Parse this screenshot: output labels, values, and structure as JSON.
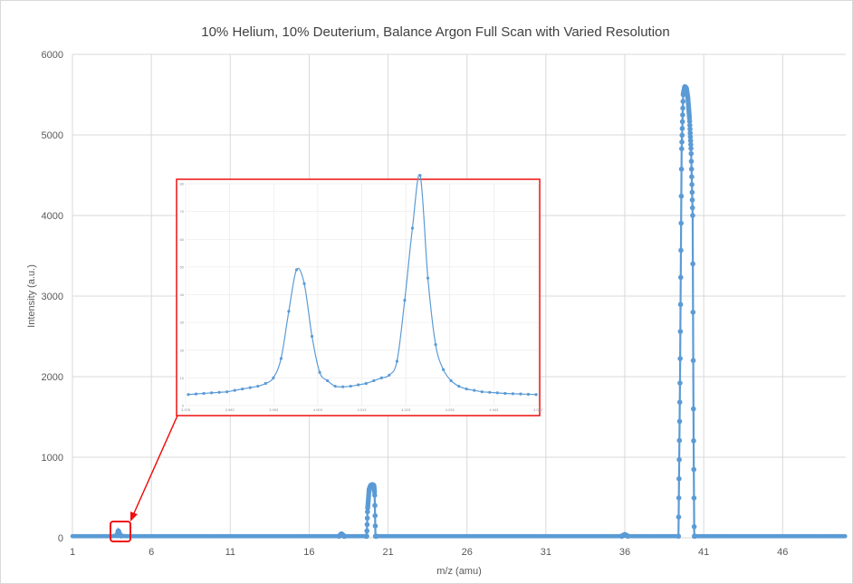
{
  "chart_data": [
    {
      "type": "scatter",
      "title": "10% Helium, 10% Deuterium, Balance Argon Full Scan with Varied Resolution",
      "xlabel": "m/z (amu)",
      "ylabel": "Intensity (a.u.)",
      "xlim": [
        1,
        50
      ],
      "ylim": [
        0,
        6000
      ],
      "x_ticks": [
        "1",
        "6",
        "11",
        "16",
        "21",
        "26",
        "31",
        "36",
        "41",
        "46"
      ],
      "y_ticks": [
        "0",
        "1000",
        "2000",
        "3000",
        "4000",
        "5000",
        "6000"
      ],
      "grid": true,
      "color": "#5b9bd5",
      "series": [
        {
          "x": [
            1,
            3.5,
            3.85,
            3.9,
            4.0,
            4.05,
            4.4,
            17.9,
            18.05,
            18.2,
            19.65,
            19.7,
            19.8,
            19.9,
            20.0,
            20.1,
            20.15,
            20.2,
            20.5,
            35.8,
            36.0,
            36.2,
            39.4,
            39.5,
            39.6,
            39.7,
            39.8,
            39.9,
            40.0,
            40.1,
            40.2,
            40.3,
            40.35,
            40.4,
            40.6,
            50
          ],
          "y": [
            20,
            20,
            30,
            90,
            40,
            25,
            20,
            20,
            50,
            20,
            20,
            350,
            600,
            650,
            660,
            650,
            550,
            20,
            20,
            20,
            40,
            20,
            20,
            2000,
            4800,
            5500,
            5600,
            5580,
            5450,
            5200,
            4800,
            4000,
            1500,
            20,
            20,
            20
          ]
        }
      ]
    },
    {
      "type": "line",
      "title": "",
      "inset_of": "peak near m/z 4",
      "x_ticks": [
        "3.978",
        "3.983",
        "3.993",
        "4.003",
        "4.013",
        "4.023",
        "4.033",
        "4.043",
        "4.053"
      ],
      "y_ticks": [
        "0",
        "10",
        "20",
        "30",
        "40",
        "50",
        "60",
        "70",
        "80"
      ],
      "ylim": [
        0,
        80
      ],
      "color": "#5b9bd5",
      "series": [
        {
          "y": [
            4,
            4.2,
            4.4,
            4.6,
            4.8,
            5,
            5.5,
            6,
            6.5,
            7,
            8,
            10,
            17,
            34,
            49,
            44,
            25,
            12,
            9,
            7,
            6.8,
            7,
            7.5,
            8,
            9,
            10,
            11,
            16,
            38,
            64,
            83,
            46,
            22,
            13,
            9,
            7,
            6,
            5.5,
            5,
            4.8,
            4.6,
            4.4,
            4.3,
            4.2,
            4.1,
            4
          ]
        }
      ]
    }
  ]
}
